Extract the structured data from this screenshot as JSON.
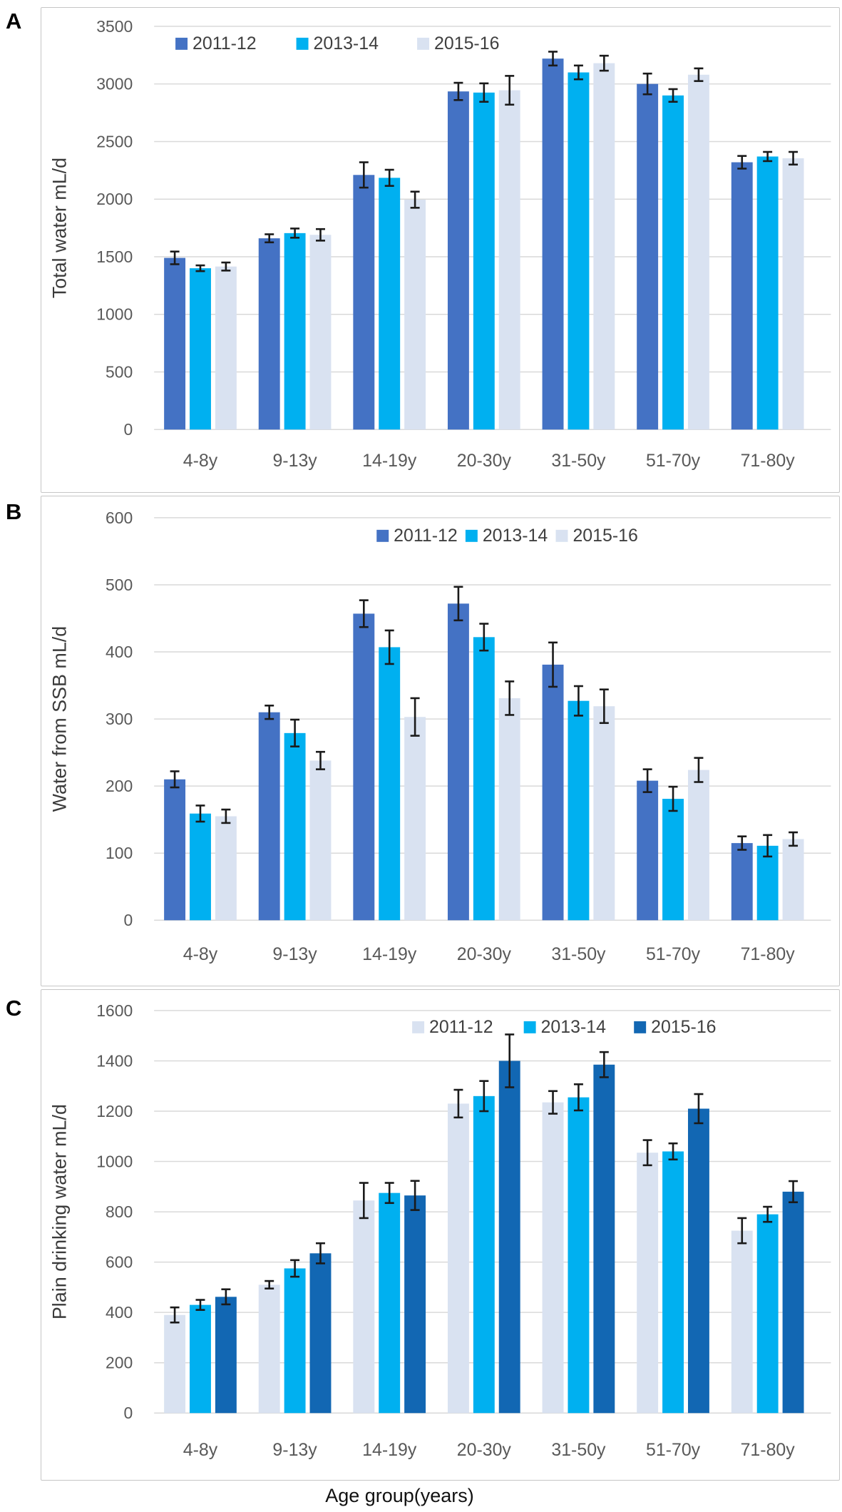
{
  "figure": {
    "xaxis_title": "Age group(years)",
    "panels": [
      {
        "label": "A"
      },
      {
        "label": "B"
      },
      {
        "label": "C"
      }
    ],
    "colors": {
      "series_royal": "#4472c4",
      "series_cyan": "#00b0f0",
      "series_pale": "#d9e2f1",
      "series_deep": "#1267b3",
      "grid": "#d9d9d9",
      "axis_text": "#595959",
      "legend_text": "#3f3f3f",
      "axis_title_text": "#3b3b3b",
      "error_bar": "#1a1a1a",
      "panel_border": "#c6c6c6",
      "background": "#ffffff"
    }
  },
  "chart_data": [
    {
      "panel": "A",
      "type": "bar",
      "title": "",
      "xlabel": "",
      "ylabel": "Total water mL/d",
      "ylim": [
        0,
        3500
      ],
      "ytick_step": 500,
      "grid": true,
      "legend_position": "top-left",
      "categories": [
        "4-8y",
        "9-13y",
        "14-19y",
        "20-30y",
        "31-50y",
        "51-70y",
        "71-80y"
      ],
      "series": [
        {
          "name": "2011-12",
          "color": "series_royal",
          "values": [
            1490,
            1660,
            2210,
            2935,
            3220,
            3000,
            2320
          ],
          "errors": [
            55,
            35,
            110,
            75,
            60,
            90,
            55
          ]
        },
        {
          "name": "2013-14",
          "color": "series_cyan",
          "values": [
            1400,
            1705,
            2185,
            2925,
            3100,
            2900,
            2370
          ],
          "errors": [
            25,
            40,
            70,
            80,
            60,
            55,
            40
          ]
        },
        {
          "name": "2015-16",
          "color": "series_pale",
          "values": [
            1415,
            1690,
            1995,
            2945,
            3180,
            3080,
            2355
          ],
          "errors": [
            35,
            50,
            70,
            125,
            65,
            55,
            55
          ]
        }
      ]
    },
    {
      "panel": "B",
      "type": "bar",
      "title": "",
      "xlabel": "",
      "ylabel": "Water from SSB mL/d",
      "ylim": [
        0,
        600
      ],
      "ytick_step": 100,
      "grid": true,
      "legend_position": "top-right",
      "categories": [
        "4-8y",
        "9-13y",
        "14-19y",
        "20-30y",
        "31-50y",
        "51-70y",
        "71-80y"
      ],
      "series": [
        {
          "name": "2011-12",
          "color": "series_royal",
          "values": [
            210,
            310,
            457,
            472,
            381,
            208,
            115
          ],
          "errors": [
            12,
            10,
            20,
            25,
            33,
            17,
            10
          ]
        },
        {
          "name": "2013-14",
          "color": "series_cyan",
          "values": [
            159,
            279,
            407,
            422,
            327,
            181,
            111
          ],
          "errors": [
            12,
            20,
            25,
            20,
            22,
            18,
            16
          ]
        },
        {
          "name": "2015-16",
          "color": "series_pale",
          "values": [
            155,
            238,
            303,
            331,
            319,
            224,
            121
          ],
          "errors": [
            10,
            13,
            28,
            25,
            25,
            18,
            10
          ]
        }
      ]
    },
    {
      "panel": "C",
      "type": "bar",
      "title": "",
      "xlabel": "Age group(years)",
      "ylabel": "Plain drinking  water mL/d",
      "ylim": [
        0,
        1600
      ],
      "ytick_step": 200,
      "grid": true,
      "legend_position": "top-right",
      "categories": [
        "4-8y",
        "9-13y",
        "14-19y",
        "20-30y",
        "31-50y",
        "51-70y",
        "71-80y"
      ],
      "series": [
        {
          "name": "2011-12",
          "color": "series_pale",
          "values": [
            390,
            510,
            845,
            1230,
            1235,
            1035,
            725
          ],
          "errors": [
            30,
            15,
            70,
            55,
            45,
            50,
            50
          ]
        },
        {
          "name": "2013-14",
          "color": "series_cyan",
          "values": [
            430,
            575,
            875,
            1260,
            1255,
            1040,
            790
          ],
          "errors": [
            20,
            33,
            40,
            60,
            52,
            32,
            30
          ]
        },
        {
          "name": "2015-16",
          "color": "series_deep",
          "values": [
            462,
            635,
            865,
            1400,
            1385,
            1210,
            880
          ],
          "errors": [
            30,
            40,
            58,
            105,
            50,
            58,
            42
          ]
        }
      ]
    }
  ]
}
